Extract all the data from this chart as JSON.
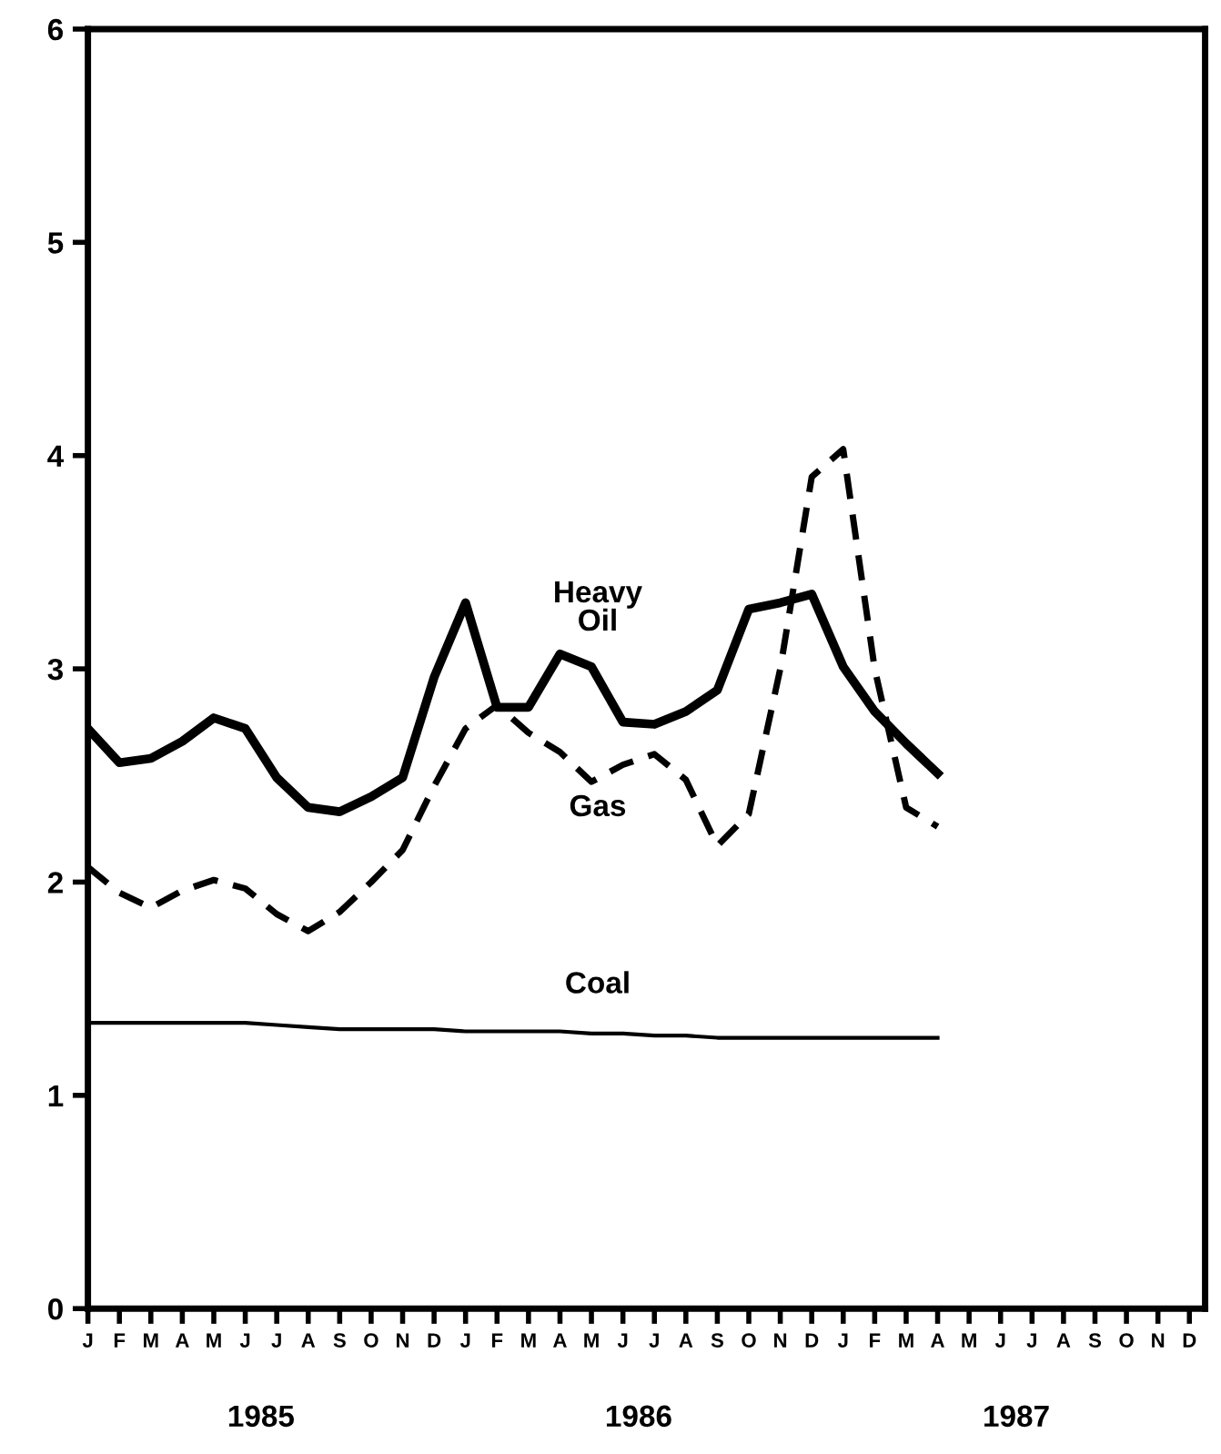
{
  "chart_data": {
    "type": "line",
    "ylim": [
      0,
      6
    ],
    "yticks": [
      0,
      1,
      2,
      3,
      4,
      5,
      6
    ],
    "categories": [
      "J",
      "F",
      "M",
      "A",
      "M",
      "J",
      "J",
      "A",
      "S",
      "O",
      "N",
      "D",
      "J",
      "F",
      "M",
      "A",
      "M",
      "J",
      "J",
      "A",
      "S",
      "O",
      "N",
      "D",
      "J",
      "F",
      "M",
      "A",
      "M",
      "J",
      "J",
      "A",
      "S",
      "O",
      "N",
      "D"
    ],
    "series": [
      {
        "name": "Heavy Oil",
        "color": "#000000",
        "line_style": "solid",
        "values": [
          2.72,
          2.56,
          2.58,
          2.66,
          2.77,
          2.72,
          2.49,
          2.35,
          2.33,
          2.4,
          2.49,
          2.96,
          3.31,
          2.82,
          2.82,
          3.07,
          3.01,
          2.75,
          2.74,
          2.8,
          2.9,
          3.28,
          3.31,
          3.35,
          3.01,
          2.8,
          2.65,
          2.51,
          null,
          null,
          null,
          null,
          null,
          null,
          null,
          null
        ]
      },
      {
        "name": "Gas",
        "color": "#000000",
        "line_style": "dashed",
        "values": [
          2.07,
          1.95,
          1.88,
          1.96,
          2.01,
          1.97,
          1.85,
          1.77,
          1.86,
          2.0,
          2.15,
          2.45,
          2.72,
          2.83,
          2.7,
          2.61,
          2.47,
          2.55,
          2.6,
          2.48,
          2.17,
          2.32,
          3.0,
          3.9,
          4.03,
          3.0,
          2.35,
          2.26,
          null,
          null,
          null,
          null,
          null,
          null,
          null,
          null
        ]
      },
      {
        "name": "Coal",
        "color": "#000000",
        "line_style": "solid",
        "values": [
          1.34,
          1.34,
          1.34,
          1.34,
          1.34,
          1.34,
          1.33,
          1.32,
          1.31,
          1.31,
          1.31,
          1.31,
          1.3,
          1.3,
          1.3,
          1.3,
          1.29,
          1.29,
          1.28,
          1.28,
          1.27,
          1.27,
          1.27,
          1.27,
          1.27,
          1.27,
          1.27,
          1.27,
          null,
          null,
          null,
          null,
          null,
          null,
          null,
          null
        ]
      }
    ],
    "marker": "none",
    "grid": false,
    "legend": false,
    "annotations": [
      "1985",
      "1986",
      "1987"
    ]
  }
}
